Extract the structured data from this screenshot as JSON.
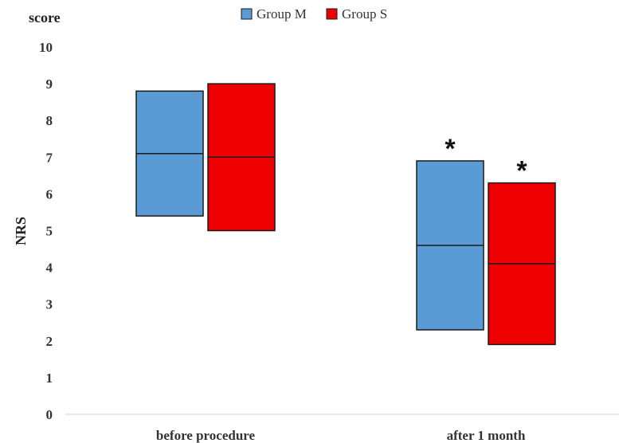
{
  "chart_data": {
    "type": "box",
    "title": "",
    "ylabel": "NRS",
    "unit_label": "score",
    "ylim": [
      0,
      10
    ],
    "yticks": [
      0,
      1,
      2,
      3,
      4,
      5,
      6,
      7,
      8,
      9,
      10
    ],
    "categories": [
      "before procedure",
      "after 1 month"
    ],
    "series": [
      {
        "name": "Group M",
        "color": "#5B9BD5",
        "boxes": [
          {
            "low": 5.4,
            "median": 7.1,
            "high": 8.8,
            "significant": false
          },
          {
            "low": 2.3,
            "median": 4.6,
            "high": 6.9,
            "significant": true
          }
        ]
      },
      {
        "name": "Group S",
        "color": "#EE0000",
        "boxes": [
          {
            "low": 5.0,
            "median": 7.0,
            "high": 9.0,
            "significant": false
          },
          {
            "low": 1.9,
            "median": 4.1,
            "high": 6.3,
            "significant": true
          }
        ]
      }
    ],
    "significance_marker": "*",
    "legend": "top-center",
    "grid": false
  }
}
